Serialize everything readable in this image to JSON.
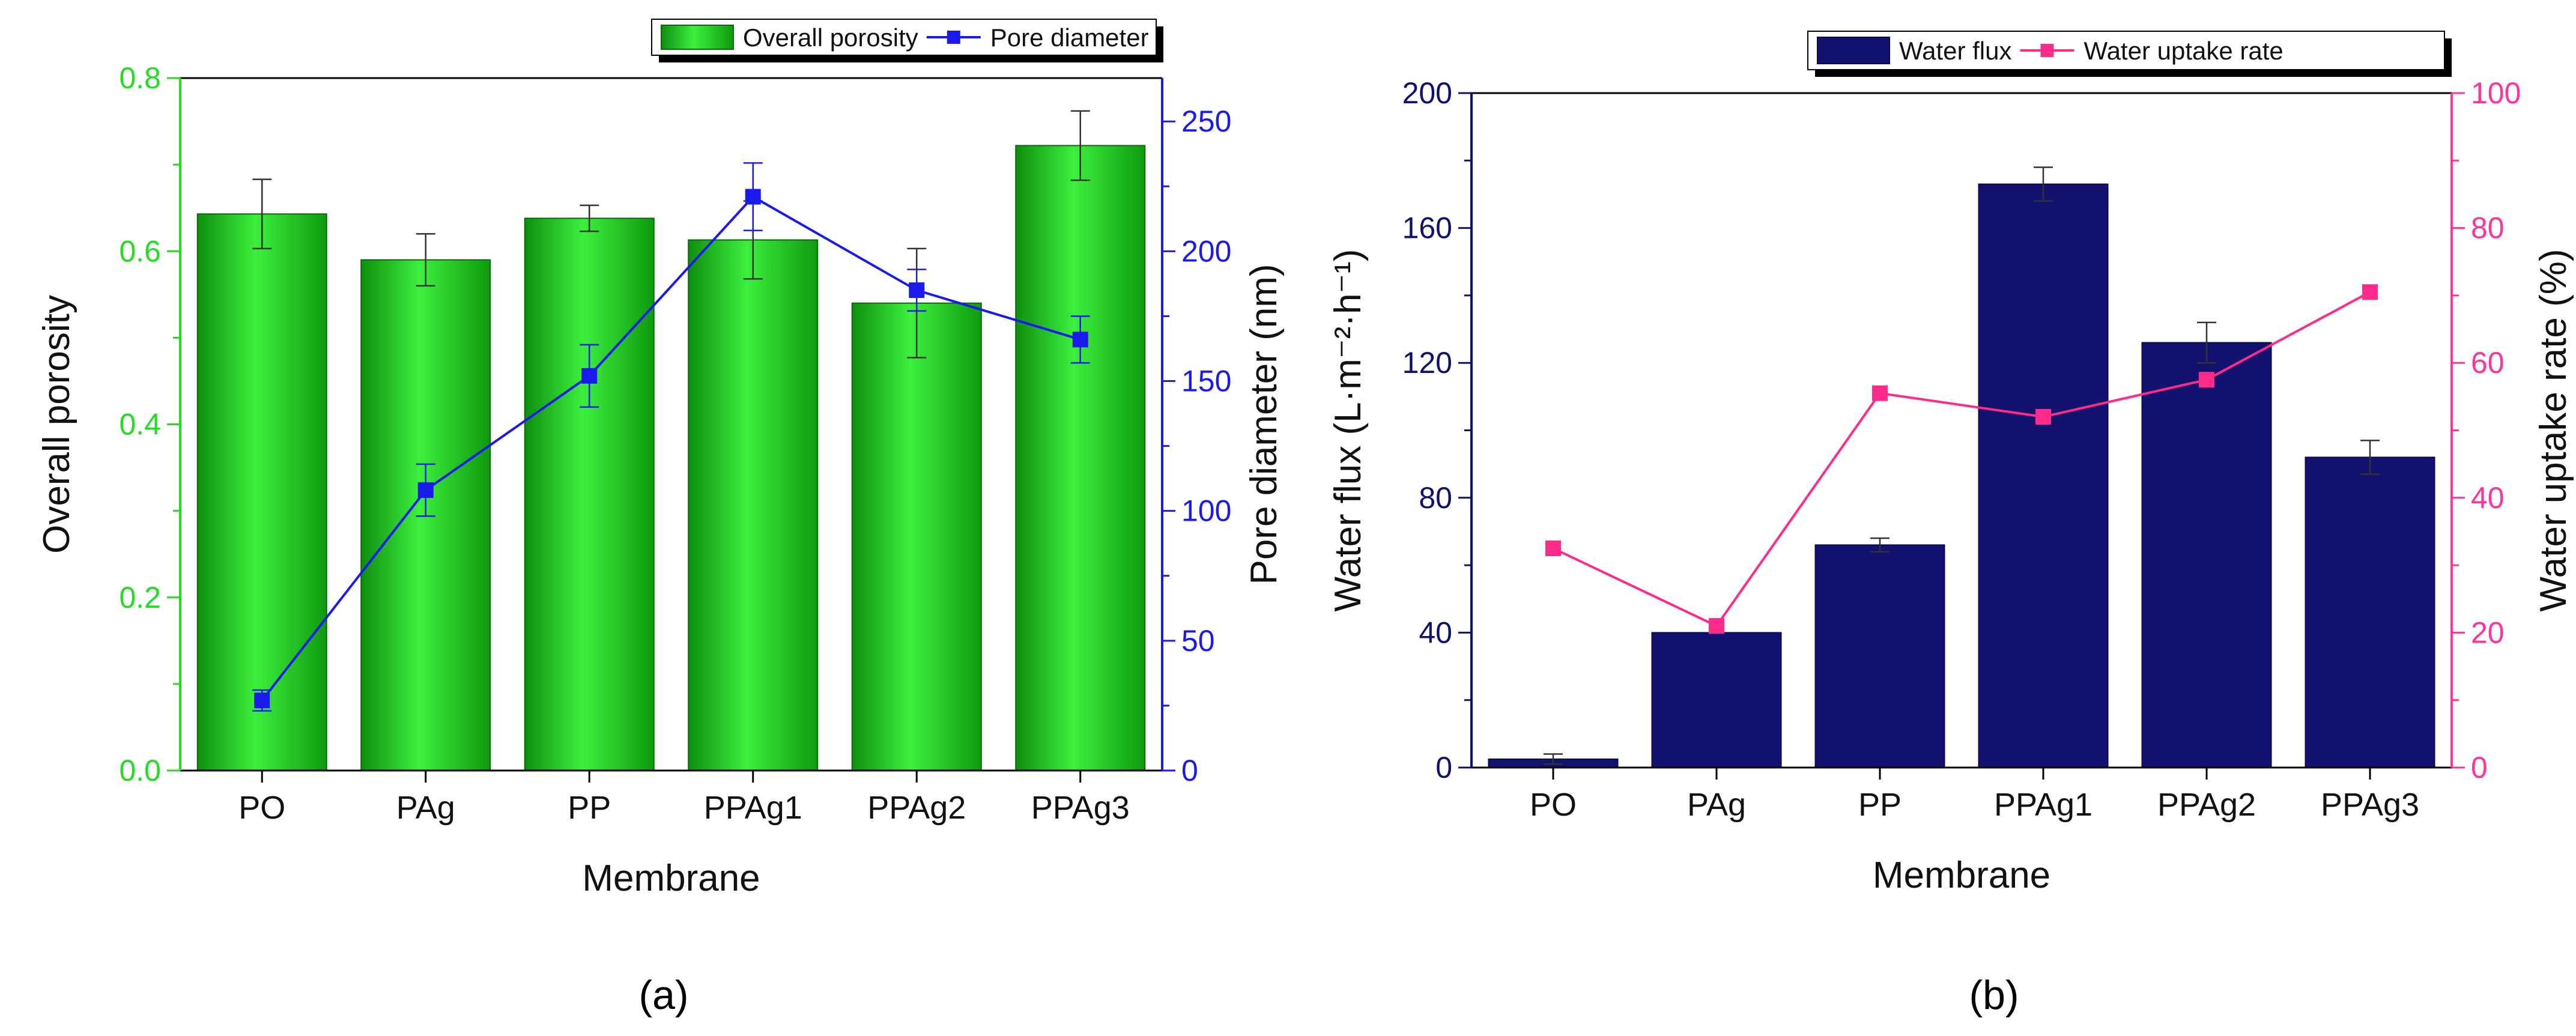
{
  "chart_data": [
    {
      "panel": "(a)",
      "type": "bar+line",
      "categories": [
        "PO",
        "PAg",
        "PP",
        "PPAg1",
        "PPAg2",
        "PPAg3"
      ],
      "xlabel": "Membrane",
      "left_axis": {
        "label": "Overall porosity",
        "range": [
          0,
          0.8
        ],
        "ticks": [
          "0.0",
          "0.2",
          "0.4",
          "0.6",
          "0.8"
        ],
        "color": "#22dd22"
      },
      "right_axis": {
        "label": "Pore diameter (nm)",
        "range": [
          0,
          266.7
        ],
        "ticks": [
          "0",
          "50",
          "100",
          "150",
          "200",
          "250"
        ],
        "color": "#1a1aee"
      },
      "series": [
        {
          "name": "Overall porosity",
          "kind": "bar",
          "axis": "left",
          "color": "#22dd22",
          "values": [
            0.643,
            0.59,
            0.638,
            0.613,
            0.54,
            0.722
          ],
          "errors": [
            0.04,
            0.03,
            0.015,
            0.045,
            0.063,
            0.04
          ]
        },
        {
          "name": "Pore diameter",
          "kind": "line",
          "axis": "right",
          "color": "#1a1aee",
          "values": [
            27,
            108,
            152,
            221,
            185,
            166
          ],
          "errors": [
            4,
            10,
            12,
            13,
            8,
            9
          ]
        }
      ],
      "legend": [
        "Overall porosity",
        "Pore diameter"
      ]
    },
    {
      "panel": "(b)",
      "type": "bar+line",
      "categories": [
        "PO",
        "PAg",
        "PP",
        "PPAg1",
        "PPAg2",
        "PPAg3"
      ],
      "xlabel": "Membrane",
      "left_axis": {
        "label": "Water flux (L·m⁻²·h⁻¹)",
        "range": [
          0,
          200
        ],
        "ticks": [
          "0",
          "40",
          "80",
          "120",
          "160",
          "200"
        ],
        "color": "#101070"
      },
      "right_axis": {
        "label": "Water uptake rate (%)",
        "range": [
          0,
          100
        ],
        "ticks": [
          "0",
          "20",
          "40",
          "60",
          "80",
          "100"
        ],
        "color": "#ff3399"
      },
      "series": [
        {
          "name": "Water flux",
          "kind": "bar",
          "axis": "left",
          "color": "#13136f",
          "values": [
            2.5,
            40,
            66,
            173,
            126,
            92
          ],
          "errors": [
            1.5,
            0,
            2,
            5,
            6,
            5
          ]
        },
        {
          "name": "Water uptake rate",
          "kind": "line",
          "axis": "right",
          "color": "#ff2a8a",
          "values": [
            32.5,
            21,
            55.5,
            52,
            57.5,
            70.5
          ],
          "errors": [
            0,
            0,
            0,
            0,
            0,
            0
          ]
        }
      ],
      "legend": [
        "Water flux",
        "Water uptake rate"
      ]
    }
  ]
}
